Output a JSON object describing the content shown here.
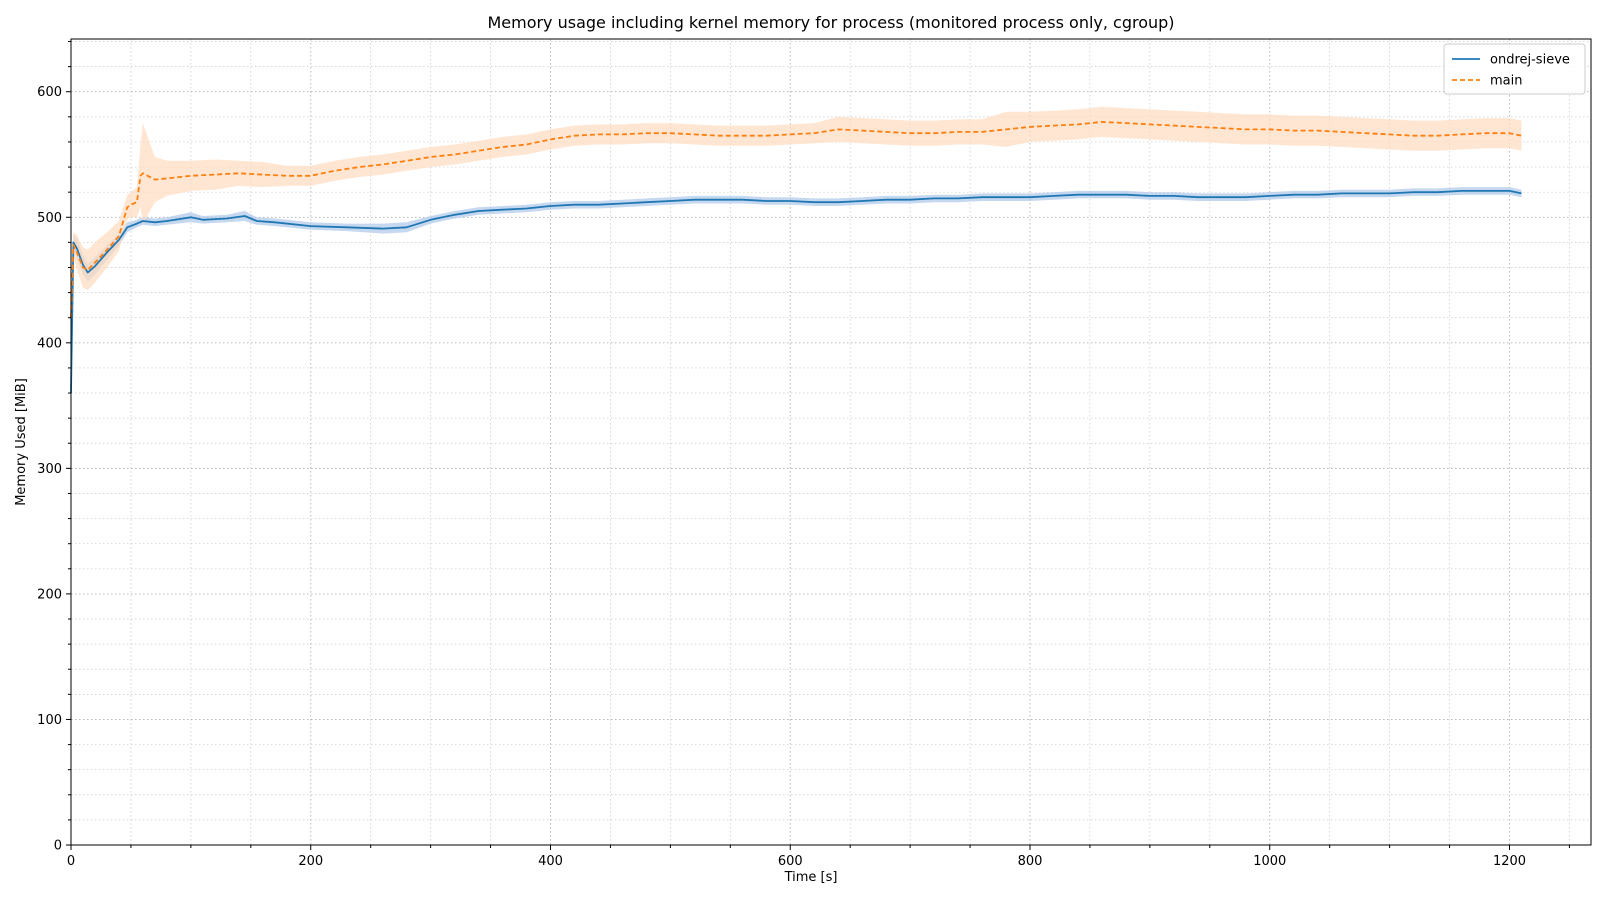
{
  "chart_data": {
    "type": "line",
    "title": "Memory usage including kernel memory for process (monitored process only, cgroup)",
    "xlabel": "Time [s]",
    "ylabel": "Memory Used [MiB]",
    "xlim": [
      0,
      1268
    ],
    "ylim": [
      0,
      642
    ],
    "x_ticks": [
      0,
      200,
      400,
      600,
      800,
      1000,
      1200
    ],
    "y_ticks": [
      0,
      100,
      200,
      300,
      400,
      500,
      600
    ],
    "x_minor_step": 50,
    "y_minor_step": 20,
    "grid": true,
    "legend_position": "top-right",
    "series": [
      {
        "name": "ondrej-sieve",
        "color": "#1f77b4",
        "band_color": "#aec7e8",
        "line_style": "solid",
        "x": [
          0,
          2,
          5,
          10,
          14,
          20,
          30,
          40,
          47,
          55,
          60,
          70,
          80,
          100,
          110,
          130,
          145,
          155,
          170,
          200,
          230,
          260,
          280,
          300,
          320,
          340,
          360,
          380,
          400,
          420,
          440,
          460,
          480,
          500,
          520,
          540,
          560,
          580,
          600,
          620,
          640,
          660,
          680,
          700,
          720,
          740,
          760,
          780,
          800,
          820,
          840,
          860,
          880,
          900,
          920,
          940,
          960,
          980,
          1000,
          1020,
          1040,
          1060,
          1080,
          1100,
          1120,
          1140,
          1160,
          1180,
          1200,
          1210
        ],
        "values": [
          360,
          480,
          475,
          462,
          456,
          461,
          472,
          482,
          492,
          495,
          497,
          496,
          497,
          500,
          498,
          499,
          501,
          497,
          496,
          493,
          492,
          491,
          492,
          498,
          502,
          505,
          506,
          507,
          509,
          510,
          510,
          511,
          512,
          513,
          514,
          514,
          514,
          513,
          513,
          512,
          512,
          513,
          514,
          514,
          515,
          515,
          516,
          516,
          516,
          517,
          518,
          518,
          518,
          517,
          517,
          516,
          516,
          516,
          517,
          518,
          518,
          519,
          519,
          519,
          520,
          520,
          521,
          521,
          521,
          519
        ],
        "band": [
          3,
          6,
          8,
          8,
          7,
          7,
          6,
          5,
          4,
          3,
          3,
          3,
          3,
          4,
          3,
          3,
          4,
          3,
          3,
          3,
          3,
          4,
          4,
          3,
          3,
          3,
          3,
          3,
          3,
          3,
          3,
          3,
          3,
          3,
          3,
          3,
          3,
          3,
          3,
          3,
          3,
          3,
          3,
          3,
          3,
          3,
          3,
          3,
          3,
          3,
          3,
          3,
          3,
          3,
          3,
          3,
          3,
          3,
          3,
          3,
          3,
          3,
          3,
          3,
          3,
          3,
          3,
          3,
          3,
          3
        ]
      },
      {
        "name": "main",
        "color": "#ff7f0e",
        "band_color": "#ffdcbf",
        "line_style": "dashed",
        "x": [
          0,
          2,
          5,
          10,
          14,
          20,
          30,
          40,
          47,
          50,
          55,
          58,
          60,
          70,
          80,
          100,
          120,
          140,
          160,
          180,
          200,
          220,
          240,
          260,
          280,
          300,
          320,
          340,
          360,
          380,
          400,
          420,
          440,
          460,
          480,
          500,
          520,
          540,
          560,
          580,
          600,
          620,
          640,
          660,
          680,
          700,
          720,
          740,
          760,
          780,
          800,
          820,
          840,
          860,
          880,
          900,
          920,
          940,
          960,
          980,
          1000,
          1020,
          1040,
          1060,
          1080,
          1100,
          1120,
          1140,
          1160,
          1180,
          1200,
          1210
        ],
        "values": [
          420,
          478,
          472,
          460,
          458,
          464,
          474,
          485,
          508,
          510,
          512,
          533,
          535,
          530,
          531,
          533,
          534,
          535,
          534,
          533,
          533,
          537,
          540,
          542,
          545,
          548,
          550,
          553,
          556,
          558,
          562,
          565,
          566,
          566,
          567,
          567,
          566,
          565,
          565,
          565,
          566,
          567,
          570,
          569,
          568,
          567,
          567,
          568,
          568,
          570,
          572,
          573,
          574,
          576,
          575,
          574,
          573,
          572,
          571,
          570,
          570,
          569,
          569,
          568,
          567,
          566,
          565,
          565,
          566,
          567,
          567,
          565
        ],
        "band": [
          5,
          10,
          14,
          16,
          16,
          16,
          14,
          12,
          10,
          10,
          12,
          25,
          40,
          18,
          14,
          12,
          12,
          10,
          10,
          8,
          8,
          8,
          8,
          8,
          8,
          8,
          8,
          8,
          8,
          8,
          8,
          8,
          8,
          8,
          8,
          8,
          8,
          8,
          8,
          8,
          8,
          8,
          10,
          10,
          10,
          10,
          10,
          10,
          10,
          14,
          12,
          12,
          12,
          12,
          12,
          12,
          12,
          12,
          12,
          12,
          12,
          12,
          12,
          12,
          12,
          12,
          12,
          12,
          12,
          12,
          12,
          12
        ]
      }
    ]
  }
}
